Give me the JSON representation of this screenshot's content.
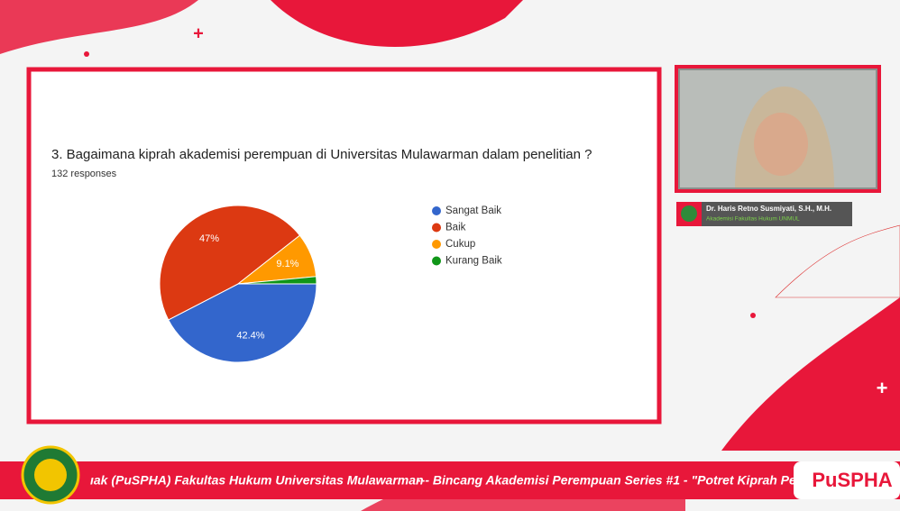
{
  "chart_data": {
    "type": "pie",
    "title": "3. Bagaimana kiprah akademisi perempuan di Universitas Mulawarman dalam penelitian ?",
    "subtitle": "132 responses",
    "categories": [
      "Sangat Baik",
      "Baik",
      "Cukup",
      "Kurang Baik"
    ],
    "values": [
      42.4,
      47,
      9.1,
      1.5
    ],
    "value_labels": [
      "42.4%",
      "47%",
      "9.1%",
      null
    ],
    "colors": [
      "#3366cc",
      "#dc3912",
      "#ff9900",
      "#109618"
    ],
    "legend": "right"
  },
  "speaker": {
    "name": "Dr. Haris Retno Susmiyati, S.H., M.H.",
    "role": "Akademisi Fakultas Hukum UNMUL"
  },
  "ticker": {
    "left": "ıak (PuSPHA) Fakultas Hukum Universitas Mulawarman",
    "right": "--- Bincang Akademisi Perempuan Series #1 - \"Potret Kiprah Pe",
    "brand": "PuSPHA"
  }
}
